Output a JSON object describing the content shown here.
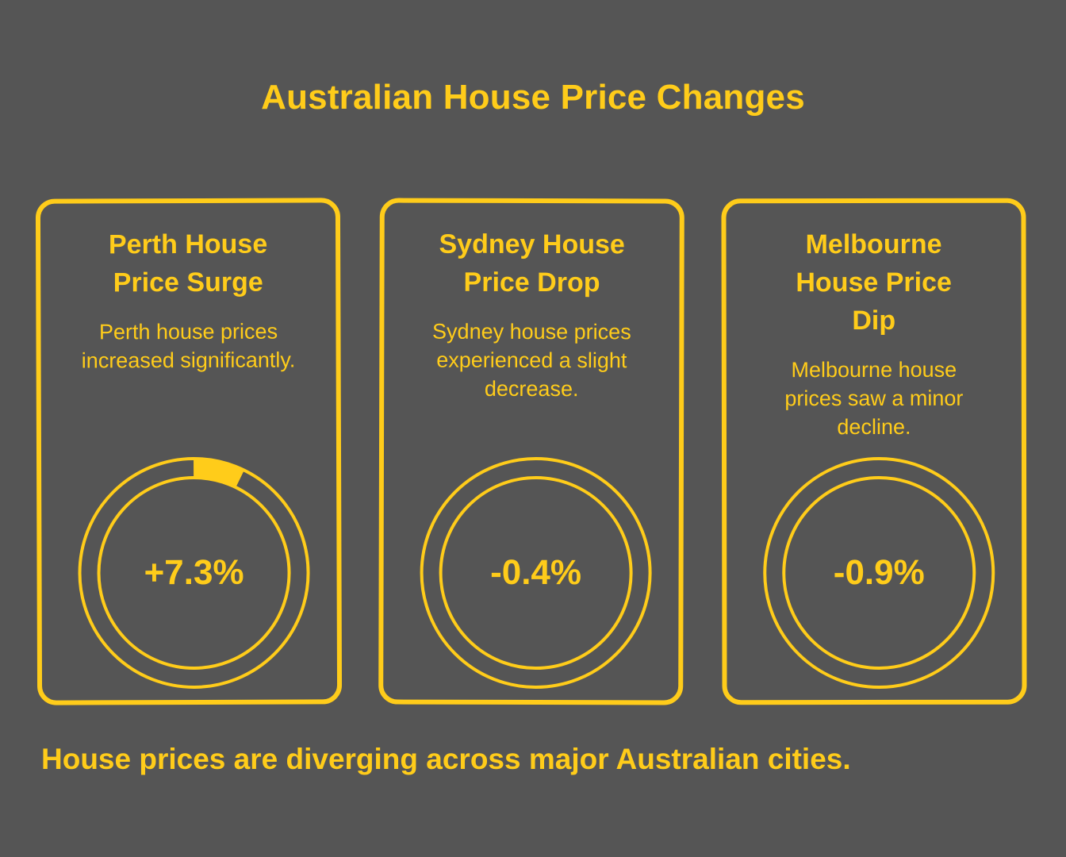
{
  "title": "Australian House Price Changes",
  "footer": "House prices are diverging across major Australian cities.",
  "colors": {
    "accent": "#FFCC1A",
    "background": "#555555"
  },
  "cards": [
    {
      "title": "Perth House Price Surge",
      "description": "Perth house prices increased significantly.",
      "value_label": "+7.3%"
    },
    {
      "title": "Sydney House Price Drop",
      "description": "Sydney house prices experienced a slight decrease.",
      "value_label": "-0.4%"
    },
    {
      "title": "Melbourne House Price Dip",
      "description": "Melbourne house prices saw a minor decline.",
      "value_label": "-0.9%"
    }
  ],
  "chart_data": {
    "type": "gauge",
    "title": "Australian House Price Changes",
    "unit": "%",
    "categories": [
      "Perth",
      "Sydney",
      "Melbourne"
    ],
    "values": [
      7.3,
      -0.4,
      -0.9
    ]
  }
}
